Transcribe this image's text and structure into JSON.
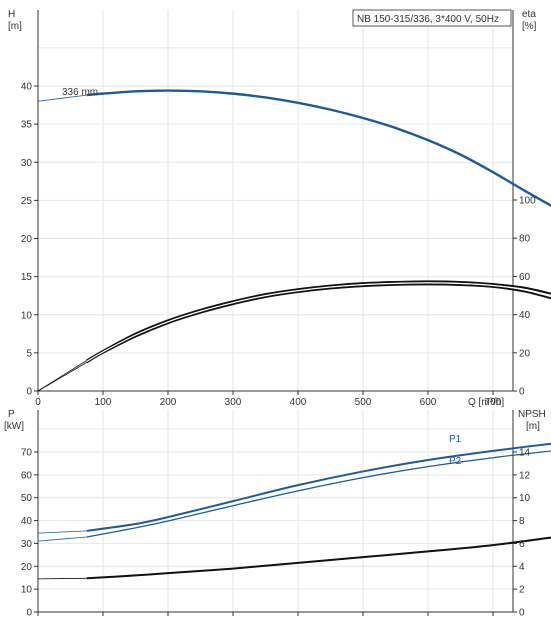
{
  "title": "NB 150-315/336, 3*400 V, 50Hz",
  "colors": {
    "blue": "#1f5a96",
    "black": "#111111",
    "grid": "#e6e6e6",
    "axis": "#333333"
  },
  "chart_data": [
    {
      "type": "line",
      "title": "NB 150-315/336, 3*400 V, 50Hz",
      "xlabel": "Q [m³/h]",
      "ylabel": "H\n[m]",
      "y2label": "eta\n[%]",
      "xlim": [
        0,
        800
      ],
      "ylim": [
        0,
        45
      ],
      "y2lim": [
        0,
        112.5
      ],
      "xticks": [
        0,
        100,
        200,
        300,
        400,
        500,
        600,
        700
      ],
      "yticks": [
        0,
        5,
        10,
        15,
        20,
        25,
        30,
        35,
        40
      ],
      "y2ticks": [
        0,
        20,
        40,
        60,
        80,
        100
      ],
      "curve_label": "336 mm",
      "grid": true,
      "series": [
        {
          "role": "head",
          "axis": "left",
          "color": "#1f5a96",
          "x": [
            0,
            75,
            100,
            150,
            200,
            250,
            300,
            350,
            400,
            450,
            500,
            550,
            600,
            650,
            700,
            750,
            800
          ],
          "y": [
            38.0,
            38.8,
            39.0,
            39.3,
            39.4,
            39.3,
            39.0,
            38.5,
            37.8,
            36.9,
            35.8,
            34.5,
            32.9,
            31.0,
            28.7,
            26.2,
            23.8
          ]
        },
        {
          "role": "eta-outer",
          "axis": "right",
          "color": "#111111",
          "x": [
            0,
            75,
            100,
            150,
            200,
            250,
            300,
            350,
            400,
            450,
            500,
            550,
            600,
            650,
            700,
            750,
            800
          ],
          "y": [
            0,
            16,
            21,
            30,
            37,
            42.5,
            47,
            50.7,
            53.3,
            55.2,
            56.5,
            57.1,
            57.4,
            57.1,
            56.0,
            54.0,
            50.0
          ]
        },
        {
          "role": "eta-inner",
          "axis": "right",
          "color": "#111111",
          "x": [
            0,
            75,
            100,
            150,
            200,
            250,
            300,
            350,
            400,
            450,
            500,
            550,
            600,
            650,
            700,
            750,
            800
          ],
          "y": [
            0,
            15,
            20,
            28.5,
            35.5,
            41,
            45.5,
            49.2,
            51.8,
            53.7,
            54.9,
            55.6,
            55.8,
            55.5,
            54.5,
            52.0,
            47.5
          ]
        }
      ]
    },
    {
      "type": "line",
      "xlabel": "",
      "ylabel": "P\n[kW]",
      "y2label": "NPSH\n[m]",
      "xlim": [
        0,
        800
      ],
      "ylim": [
        0,
        80
      ],
      "y2lim": [
        0,
        16
      ],
      "yticks": [
        0,
        10,
        20,
        30,
        40,
        50,
        60,
        70
      ],
      "y2ticks": [
        0,
        2,
        4,
        6,
        8,
        10,
        12,
        14
      ],
      "grid": true,
      "series": [
        {
          "name": "P1",
          "axis": "left",
          "color": "#1f5a96",
          "x": [
            0,
            75,
            150,
            200,
            300,
            400,
            500,
            600,
            700,
            800
          ],
          "y": [
            34.5,
            35.5,
            38.5,
            41.5,
            48.5,
            55.5,
            61.5,
            66.5,
            70.5,
            74.0
          ]
        },
        {
          "name": "P2",
          "axis": "left",
          "color": "#1f5a96",
          "x": [
            0,
            75,
            150,
            200,
            300,
            400,
            500,
            600,
            700,
            800
          ],
          "y": [
            31.0,
            32.8,
            36.8,
            39.8,
            46.5,
            53.0,
            58.8,
            63.6,
            67.5,
            70.8
          ]
        },
        {
          "role": "npsh",
          "axis": "right",
          "color": "#111111",
          "x": [
            0,
            75,
            150,
            200,
            300,
            400,
            500,
            600,
            700,
            800
          ],
          "y": [
            2.9,
            2.95,
            3.2,
            3.4,
            3.8,
            4.3,
            4.8,
            5.3,
            5.85,
            6.6
          ]
        }
      ]
    }
  ]
}
